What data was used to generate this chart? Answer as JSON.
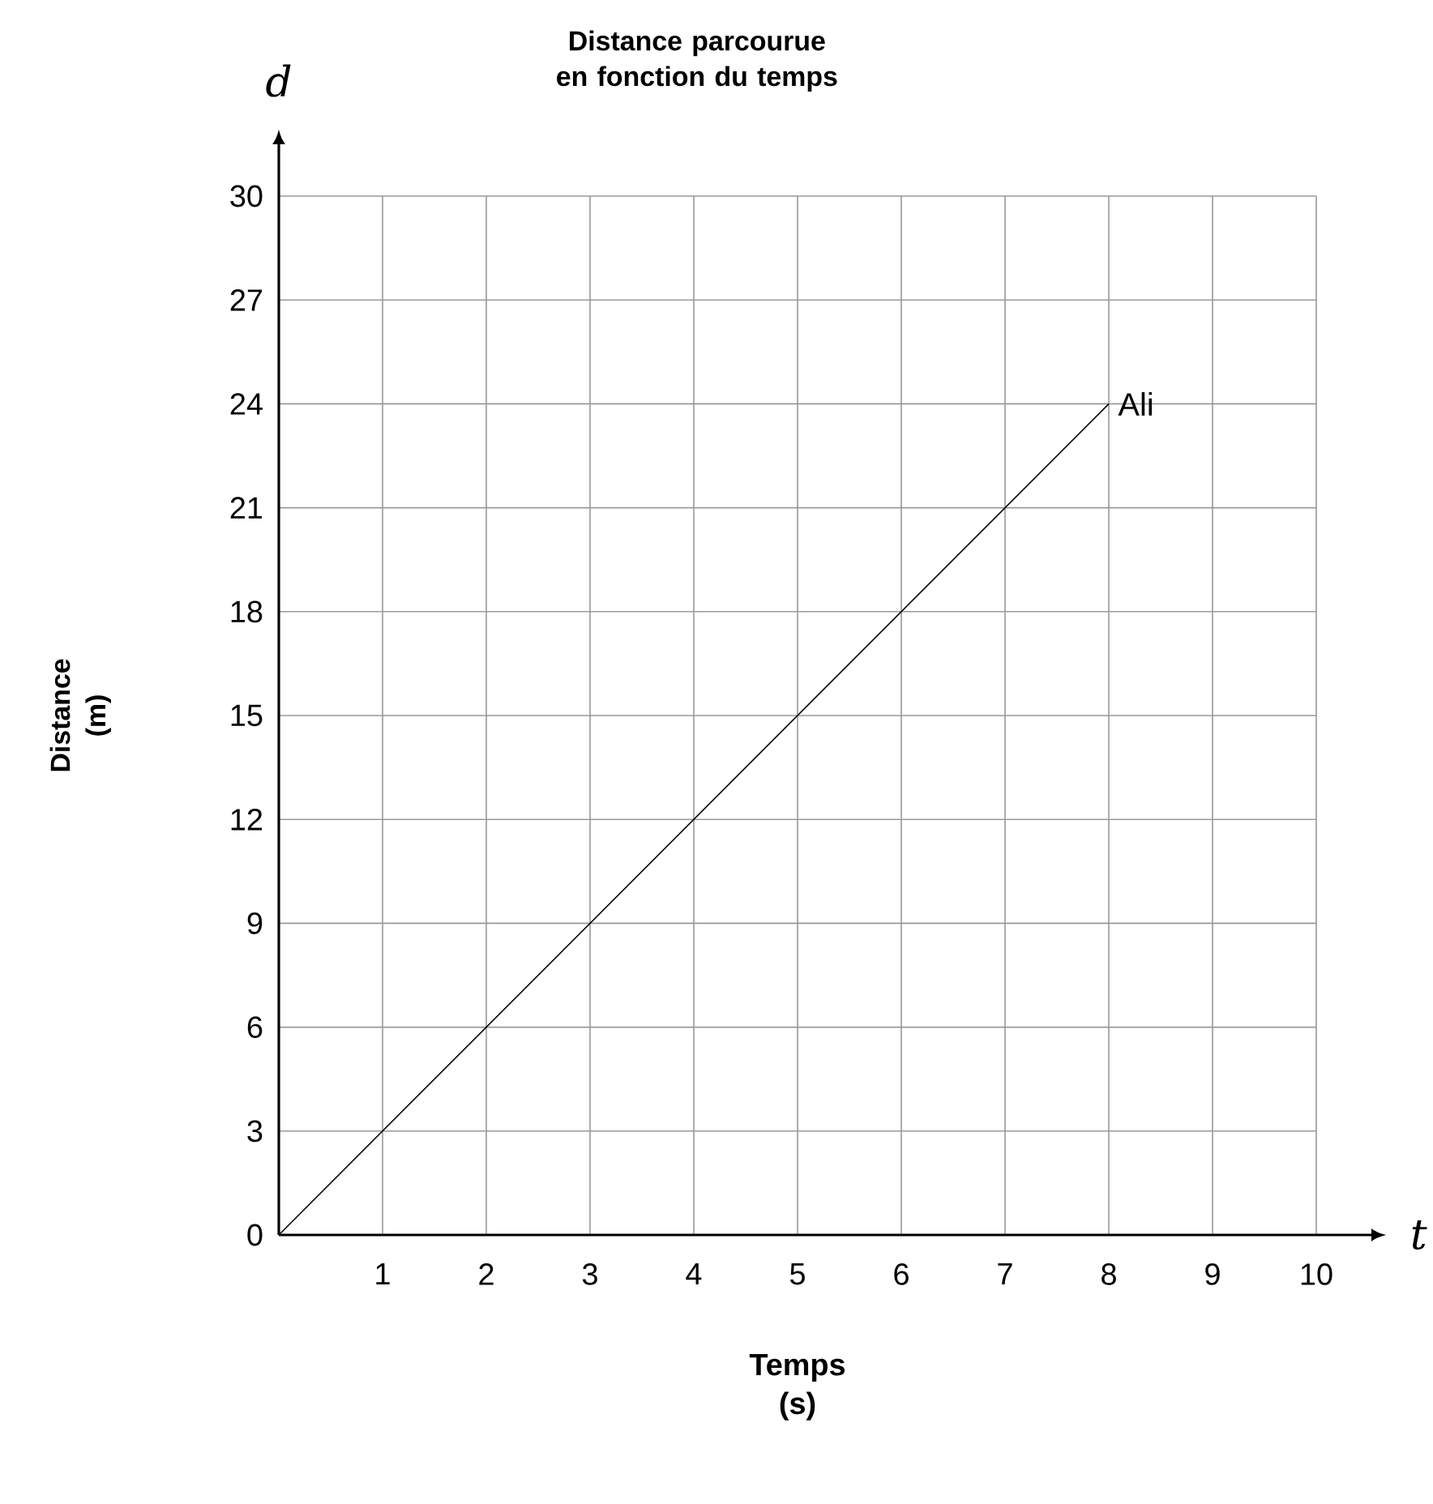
{
  "chart_data": {
    "type": "line",
    "title": "Distance parcourue en fonction du temps",
    "xlabel": "Temps (s)",
    "ylabel": "Distance (m)",
    "annotations": [
      "d",
      "t"
    ],
    "series": [
      {
        "name": "Ali",
        "color": "#000000",
        "x": [
          0,
          8
        ],
        "values": [
          0,
          24
        ]
      }
    ],
    "xlim": [
      0,
      10
    ],
    "ylim": [
      0,
      30
    ],
    "xticks": [
      1,
      2,
      3,
      4,
      5,
      6,
      7,
      8,
      9,
      10
    ],
    "yticks": [
      0,
      3,
      6,
      9,
      12,
      15,
      18,
      21,
      24,
      27,
      30
    ],
    "grid": true
  }
}
